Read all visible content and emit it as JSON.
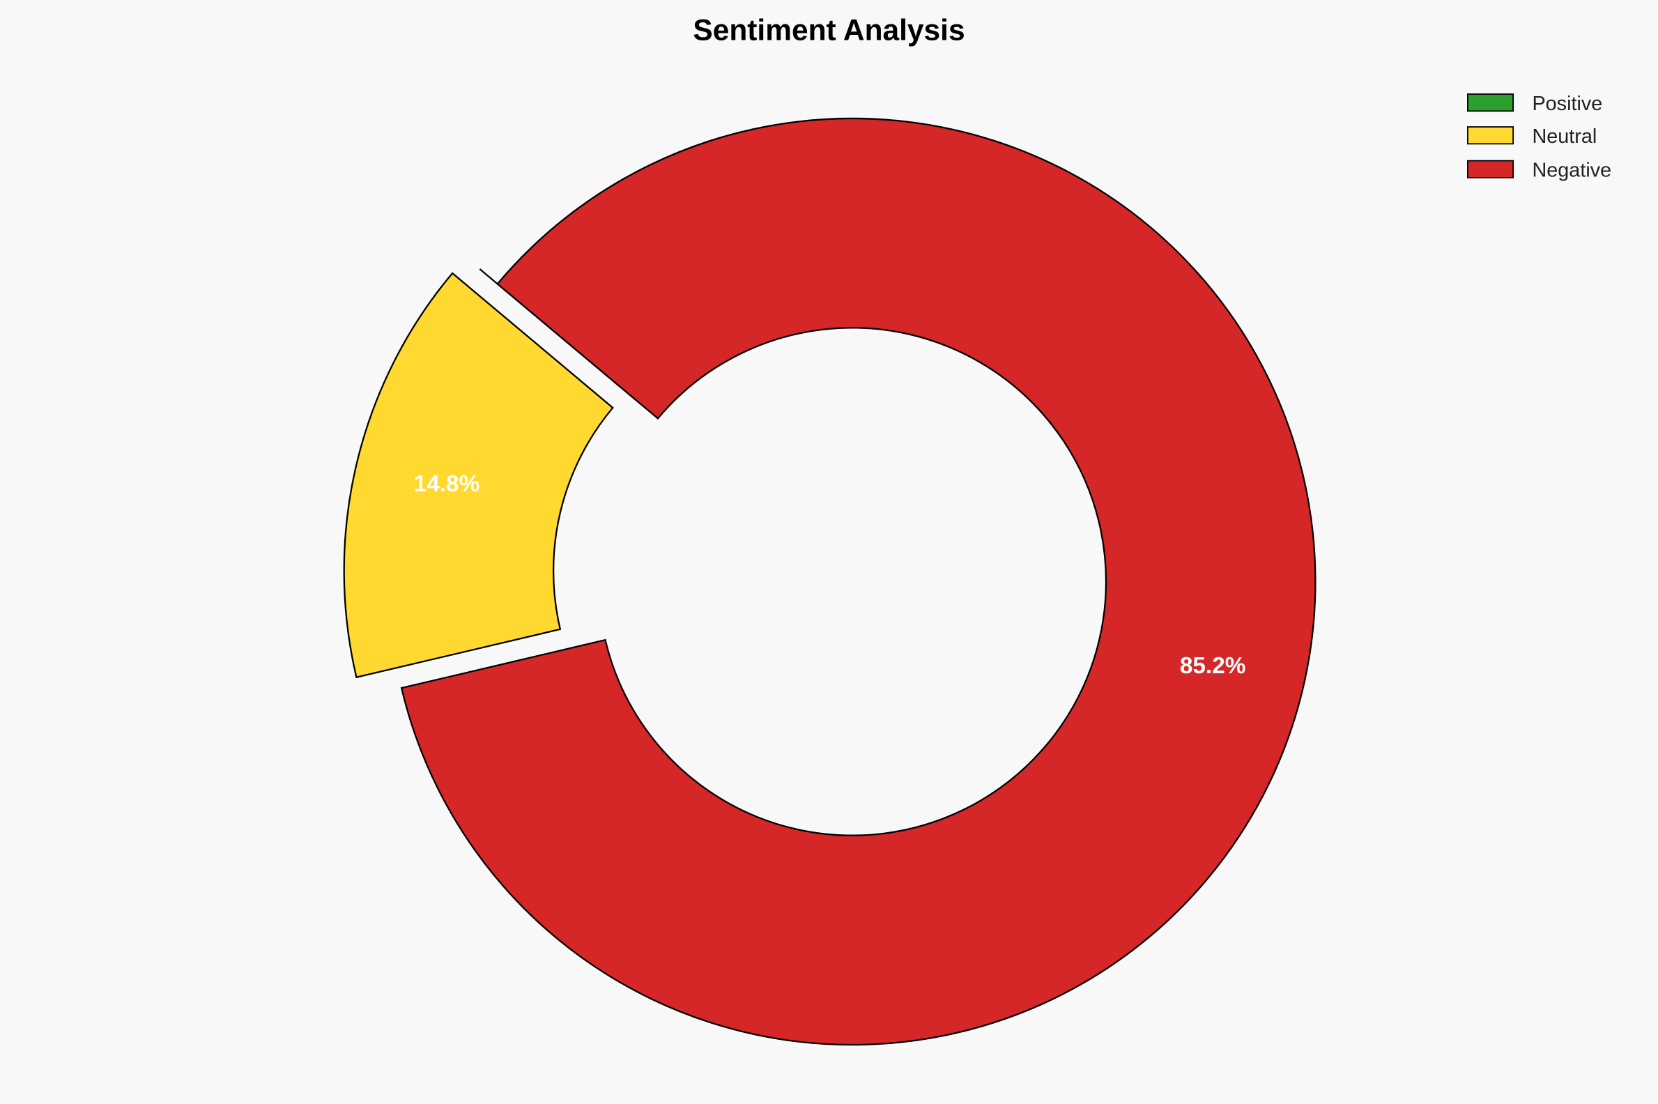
{
  "chart_data": {
    "type": "pie",
    "variant": "donut",
    "title": "Sentiment Analysis",
    "categories": [
      "Positive",
      "Neutral",
      "Negative"
    ],
    "values": [
      0.0,
      14.8,
      85.2
    ],
    "labels": [
      "",
      "14.8%",
      "85.2%"
    ],
    "colors": [
      "#2ca02c",
      "#ffd92f",
      "#d62728"
    ],
    "explode": [
      0.05,
      0.1,
      0.0
    ],
    "start_angle": 140,
    "legend": {
      "entries": [
        "Positive",
        "Neutral",
        "Negative"
      ],
      "placement": "top-right"
    }
  }
}
